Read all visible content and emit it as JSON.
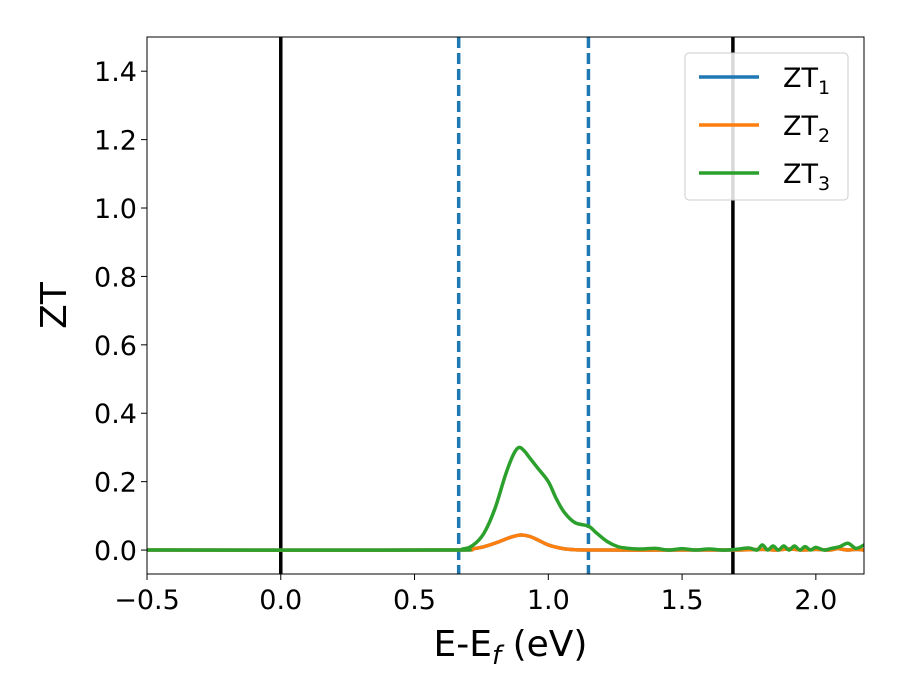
{
  "chart_data": {
    "type": "line",
    "xlabel_main": "E-E",
    "xlabel_sub": "f",
    "xlabel_unit": " (eV)",
    "ylabel": "ZT",
    "xlim": [
      -0.5,
      2.18
    ],
    "ylim": [
      -0.07,
      1.5
    ],
    "xticks": [
      -0.5,
      0.0,
      0.5,
      1.0,
      1.5,
      2.0
    ],
    "xtick_labels": [
      "−0.5",
      "0.0",
      "0.5",
      "1.0",
      "1.5",
      "2.0"
    ],
    "yticks": [
      0.0,
      0.2,
      0.4,
      0.6,
      0.8,
      1.0,
      1.2,
      1.4
    ],
    "ytick_labels": [
      "0.0",
      "0.2",
      "0.4",
      "0.6",
      "0.8",
      "1.0",
      "1.2",
      "1.4"
    ],
    "grid": false,
    "legend_position": "top-right",
    "vlines_solid": [
      0.0,
      1.69
    ],
    "vlines_dashed": [
      0.665,
      1.15
    ],
    "series": [
      {
        "name": "ZT",
        "subscript": "1",
        "color": "#1f77b4",
        "x": [
          -0.5,
          0.6,
          0.7,
          0.75,
          0.8,
          0.85,
          0.88,
          0.9,
          0.93,
          0.96,
          1.0,
          1.05,
          1.1,
          1.2,
          1.5,
          1.7,
          1.8,
          1.85,
          1.9,
          1.95,
          2.0,
          2.05,
          2.08,
          2.1,
          2.12,
          2.15,
          2.18
        ],
        "y": [
          0,
          0,
          0.002,
          0.008,
          0.02,
          0.035,
          0.042,
          0.044,
          0.04,
          0.03,
          0.015,
          0.005,
          0.001,
          0,
          0,
          0,
          0.002,
          0,
          0.003,
          0,
          0.002,
          0,
          0.004,
          0.002,
          0,
          0.002,
          0
        ]
      },
      {
        "name": "ZT",
        "subscript": "2",
        "color": "#ff7f0e",
        "x": [
          -0.5,
          0.6,
          0.7,
          0.75,
          0.8,
          0.85,
          0.88,
          0.9,
          0.93,
          0.96,
          1.0,
          1.05,
          1.1,
          1.2,
          1.5,
          1.7,
          1.8,
          1.85,
          1.9,
          1.95,
          2.0,
          2.05,
          2.08,
          2.1,
          2.12,
          2.15,
          2.18
        ],
        "y": [
          0,
          0,
          0.002,
          0.008,
          0.02,
          0.035,
          0.042,
          0.044,
          0.04,
          0.03,
          0.015,
          0.005,
          0.001,
          0,
          0,
          0,
          0.002,
          0,
          0.003,
          0,
          0.002,
          0,
          0.004,
          0.002,
          0,
          0.002,
          0
        ]
      },
      {
        "name": "ZT",
        "subscript": "3",
        "color": "#2ca02c",
        "x": [
          -0.5,
          0.6,
          0.68,
          0.72,
          0.76,
          0.8,
          0.84,
          0.87,
          0.89,
          0.91,
          0.93,
          0.96,
          1.0,
          1.03,
          1.06,
          1.1,
          1.15,
          1.18,
          1.22,
          1.26,
          1.3,
          1.35,
          1.4,
          1.45,
          1.5,
          1.55,
          1.6,
          1.65,
          1.7,
          1.75,
          1.78,
          1.8,
          1.82,
          1.84,
          1.86,
          1.88,
          1.9,
          1.92,
          1.94,
          1.96,
          1.98,
          2.0,
          2.03,
          2.06,
          2.09,
          2.12,
          2.15,
          2.18
        ],
        "y": [
          0,
          0,
          0.003,
          0.015,
          0.05,
          0.12,
          0.22,
          0.28,
          0.3,
          0.29,
          0.27,
          0.24,
          0.2,
          0.15,
          0.11,
          0.08,
          0.07,
          0.05,
          0.025,
          0.01,
          0.005,
          0.003,
          0.005,
          0.0,
          0.004,
          0.0,
          0.003,
          0.0,
          0.002,
          0.006,
          0.0,
          0.015,
          0.0,
          0.012,
          0.0,
          0.012,
          0.0,
          0.012,
          0.0,
          0.01,
          0.0,
          0.008,
          0.0,
          0.005,
          0.01,
          0.02,
          0.005,
          0.015
        ]
      }
    ]
  }
}
